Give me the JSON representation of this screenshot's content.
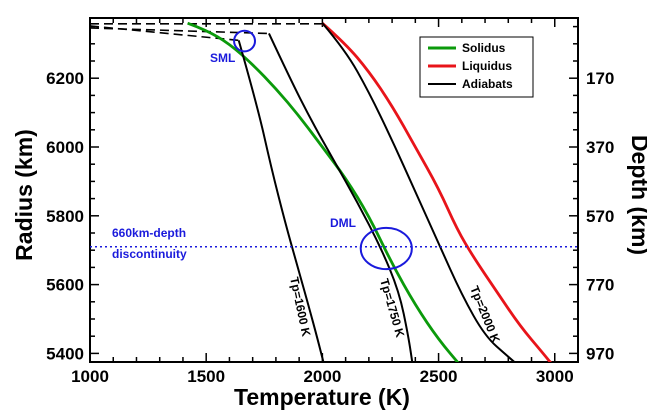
{
  "chart_data": {
    "type": "line",
    "xlabel": "Temperature (K)",
    "ylabel": "Radius (km)",
    "y2label": "Depth (km)",
    "xlim": [
      1000,
      3100
    ],
    "ylim": [
      5375,
      6375
    ],
    "x_ticks": [
      1000,
      1500,
      2000,
      2500,
      3000
    ],
    "y_ticks": [
      5400,
      5600,
      5800,
      6000,
      6200
    ],
    "y2_tick_labels": [
      {
        "radius": 6200,
        "label": "170"
      },
      {
        "radius": 6000,
        "label": "370"
      },
      {
        "radius": 5800,
        "label": "570"
      },
      {
        "radius": 5600,
        "label": "770"
      },
      {
        "radius": 5400,
        "label": "970"
      }
    ],
    "grid": false,
    "legend": {
      "position": "top-right",
      "entries": [
        "Solidus",
        "Liquidus",
        "Adiabats"
      ]
    },
    "series": [
      {
        "name": "Solidus",
        "color": "#0b9a0b",
        "points": [
          [
            1420,
            6360
          ],
          [
            1500,
            6340
          ],
          [
            1600,
            6300
          ],
          [
            1700,
            6240
          ],
          [
            1800,
            6170
          ],
          [
            1900,
            6090
          ],
          [
            2000,
            6000
          ],
          [
            2100,
            5910
          ],
          [
            2200,
            5800
          ],
          [
            2300,
            5660
          ],
          [
            2400,
            5540
          ],
          [
            2500,
            5440
          ],
          [
            2600,
            5360
          ]
        ]
      },
      {
        "name": "Liquidus",
        "color": "#e8141a",
        "points": [
          [
            2000,
            6360
          ],
          [
            2100,
            6300
          ],
          [
            2200,
            6220
          ],
          [
            2300,
            6120
          ],
          [
            2400,
            6000
          ],
          [
            2500,
            5880
          ],
          [
            2580,
            5760
          ],
          [
            2650,
            5680
          ],
          [
            2750,
            5580
          ],
          [
            2850,
            5480
          ],
          [
            2950,
            5400
          ],
          [
            3010,
            5350
          ]
        ]
      },
      {
        "name": "Adiabats",
        "color": "#000000",
        "points": [
          [
            1640,
            6310
          ],
          [
            1720,
            6120
          ],
          [
            1780,
            5940
          ],
          [
            1840,
            5780
          ],
          [
            1890,
            5660
          ],
          [
            1940,
            5540
          ],
          [
            1980,
            5440
          ],
          [
            2010,
            5360
          ]
        ]
      },
      {
        "name": "Tp=1750 K",
        "color": "#000000",
        "points": [
          [
            1770,
            6330
          ],
          [
            1860,
            6200
          ],
          [
            1950,
            6080
          ],
          [
            2050,
            5960
          ],
          [
            2150,
            5840
          ],
          [
            2250,
            5710
          ],
          [
            2330,
            5580
          ],
          [
            2370,
            5450
          ],
          [
            2390,
            5360
          ]
        ]
      },
      {
        "name": "Tp=2000 K",
        "color": "#000000",
        "points": [
          [
            2000,
            6360
          ],
          [
            2100,
            6280
          ],
          [
            2200,
            6160
          ],
          [
            2300,
            6020
          ],
          [
            2400,
            5870
          ],
          [
            2500,
            5720
          ],
          [
            2600,
            5570
          ],
          [
            2700,
            5450
          ],
          [
            2800,
            5390
          ],
          [
            2870,
            5350
          ]
        ]
      }
    ],
    "dashed_lines": [
      {
        "points": [
          [
            1000,
            6358
          ],
          [
            2000,
            6358
          ]
        ]
      },
      {
        "points": [
          [
            1000,
            6352
          ],
          [
            1640,
            6310
          ]
        ]
      },
      {
        "points": [
          [
            1000,
            6346
          ],
          [
            1770,
            6330
          ]
        ]
      }
    ],
    "horizontal_reference": {
      "radius": 5710,
      "color": "#1a1adc",
      "label": [
        "660km-depth",
        "discontinuity"
      ]
    },
    "markers": [
      {
        "label": "SML",
        "x": 1665,
        "y": 6308,
        "rx_data": 45,
        "ry_data": 30
      },
      {
        "label": "DML",
        "x": 2275,
        "y": 5705,
        "rx_data": 110,
        "ry_data": 60
      }
    ],
    "curve_labels": [
      "Tp=1600 K",
      "Tp=1750 K",
      "Tp=2000 K"
    ]
  }
}
